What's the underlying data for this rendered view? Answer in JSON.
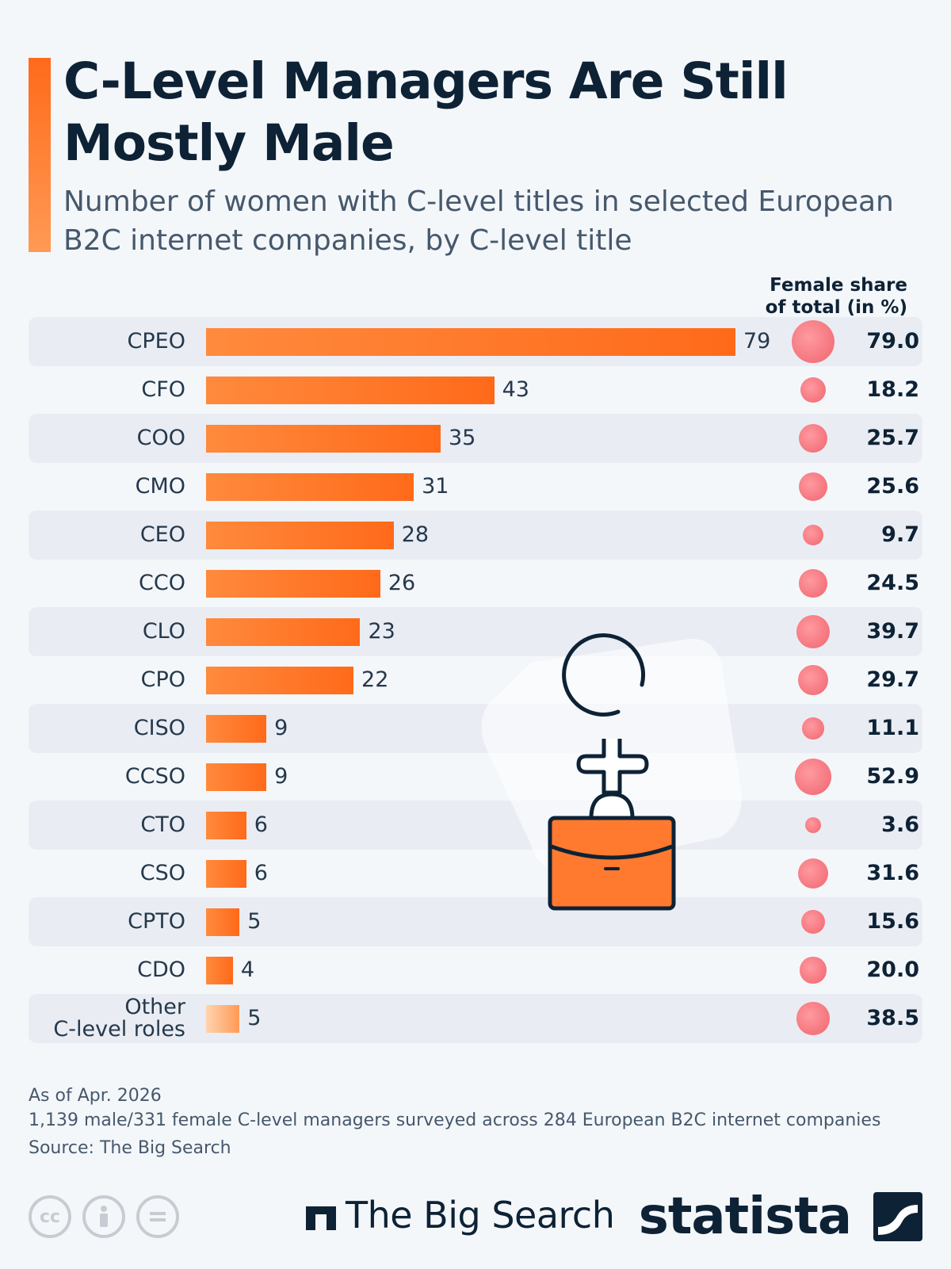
{
  "header": {
    "title": "C-Level Managers Are Still Mostly Male",
    "subtitle": "Number of women with C-level titles in selected European B2C internet companies, by C-level title"
  },
  "chart_data": {
    "type": "bar",
    "orientation": "horizontal",
    "share_header": "Female share of total (in %)",
    "categories": [
      "CPEO",
      "CFO",
      "COO",
      "CMO",
      "CEO",
      "CCO",
      "CLO",
      "CPO",
      "CISO",
      "CCSO",
      "CTO",
      "CSO",
      "CPTO",
      "CDO",
      "Other C-level roles"
    ],
    "values": [
      79,
      43,
      35,
      31,
      28,
      26,
      23,
      22,
      9,
      9,
      6,
      6,
      5,
      4,
      5
    ],
    "female_share": [
      79.0,
      18.2,
      25.7,
      25.6,
      9.7,
      24.5,
      39.7,
      29.7,
      11.1,
      52.9,
      3.6,
      31.6,
      15.6,
      20.0,
      38.5
    ],
    "female_share_labels": [
      "79.0",
      "18.2",
      "25.7",
      "25.6",
      "9.7",
      "24.5",
      "39.7",
      "29.7",
      "11.1",
      "52.9",
      "3.6",
      "31.6",
      "15.6",
      "20.0",
      "38.5"
    ],
    "xlim": [
      0,
      79
    ],
    "colors": {
      "bar": "#ff6a1a",
      "bar_other": "#ffb98a",
      "bubble": "#f0646e"
    }
  },
  "footnotes": {
    "date": "As of Apr. 2026",
    "survey": "1,139 male/331 female C-level managers surveyed across 284 European B2C internet companies",
    "source": "Source: The Big Search"
  },
  "footer": {
    "cc_icons": [
      "creative-commons-icon",
      "attribution-icon",
      "no-derivatives-icon"
    ],
    "cc_label": "cc",
    "partner_name": "The Big Search",
    "brand_name": "statista"
  }
}
